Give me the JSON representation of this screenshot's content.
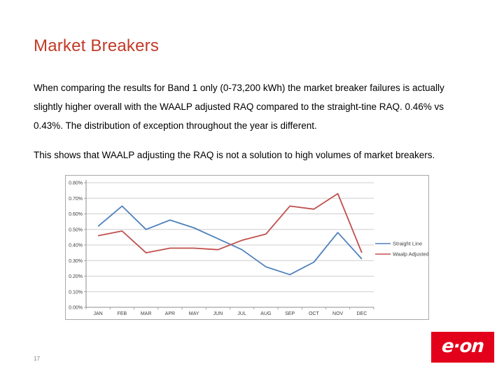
{
  "slide": {
    "title": "Market Breakers",
    "paragraph1": "When comparing the results for Band 1 only (0-73,200 kWh) the market breaker failures is actually slightly higher overall with the WAALP adjusted RAQ compared to the straight-tine RAQ. 0.46% vs 0.43%.  The distribution of exception throughout the year is different.",
    "paragraph2": "This shows that WAALP adjusting the RAQ is not a solution to high volumes of market breakers.",
    "page_number": "17",
    "logo_text": "e·on"
  },
  "colors": {
    "title_red": "#c23a28",
    "logo_red": "#e2001a",
    "chart_border": "#a9a9a9",
    "gridline": "#d0cece",
    "axis": "#8c8c8c",
    "axis_label": "#404040",
    "series_blue": "#4f81bd",
    "series_red": "#c0504d"
  },
  "chart_data": {
    "type": "line",
    "title": "",
    "xlabel": "",
    "ylabel": "",
    "categories": [
      "JAN",
      "FEB",
      "MAR",
      "APR",
      "MAY",
      "JUN",
      "JUL",
      "AUG",
      "SEP",
      "OCT",
      "NOV",
      "DEC"
    ],
    "series": [
      {
        "name": "Straight Line",
        "color": "#4f81bd",
        "values": [
          0.52,
          0.65,
          0.5,
          0.56,
          0.51,
          0.44,
          0.37,
          0.26,
          0.21,
          0.29,
          0.48,
          0.31
        ]
      },
      {
        "name": "Waalp Adjusted",
        "color": "#c0504d",
        "values": [
          0.46,
          0.49,
          0.35,
          0.38,
          0.38,
          0.37,
          0.43,
          0.47,
          0.65,
          0.63,
          0.73,
          0.35
        ]
      }
    ],
    "unit": "%",
    "ylim": [
      0.0,
      0.8
    ],
    "y_tick_step": 0.1,
    "y_tick_labels": [
      "0.00%",
      "0.10%",
      "0.20%",
      "0.30%",
      "0.40%",
      "0.50%",
      "0.60%",
      "0.70%",
      "0.80%"
    ],
    "grid": true,
    "legend_position": "right"
  }
}
